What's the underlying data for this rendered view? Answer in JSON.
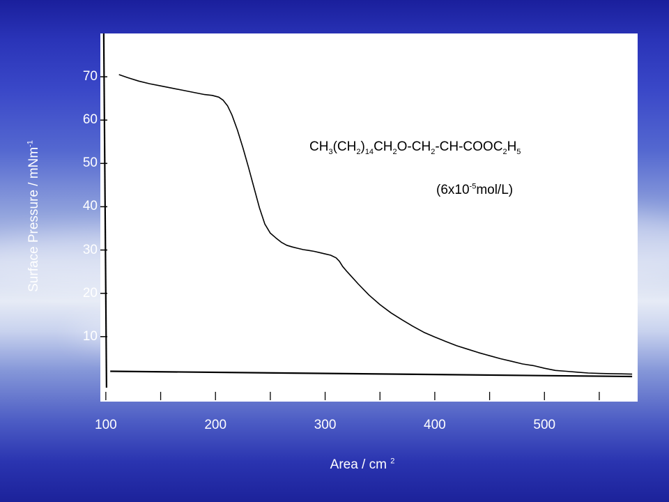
{
  "chart_data": {
    "type": "line",
    "xlabel": {
      "text": "Area / cm",
      "sup": "2"
    },
    "ylabel": {
      "text": "Surface Pressure / mNm",
      "sup": "-1"
    },
    "xlim": [
      95,
      585
    ],
    "ylim": [
      -5,
      80
    ],
    "x_ticks": [
      100,
      200,
      300,
      400,
      500
    ],
    "y_ticks": [
      10,
      20,
      30,
      40,
      50,
      60,
      70
    ],
    "x_minor_ticks": [
      150,
      250,
      350,
      450,
      550
    ],
    "grid": false,
    "legend": "none",
    "annotations": {
      "formula": [
        {
          "t": "CH"
        },
        {
          "sub": "3"
        },
        {
          "t": "(CH"
        },
        {
          "sub": "2"
        },
        {
          "t": ")"
        },
        {
          "sub": "14"
        },
        {
          "t": "CH"
        },
        {
          "sub": "2"
        },
        {
          "t": "O-CH"
        },
        {
          "sub": "2"
        },
        {
          "t": "-CH-COOC"
        },
        {
          "sub": "2"
        },
        {
          "t": "H"
        },
        {
          "sub": "5"
        }
      ],
      "concentration": [
        {
          "t": "(6x10"
        },
        {
          "sup": "-5"
        },
        {
          "t": "mol/L)"
        }
      ]
    },
    "series": [
      {
        "color": "#000000",
        "x": [
          112,
          120,
          130,
          140,
          150,
          160,
          170,
          180,
          190,
          197,
          203,
          207,
          211,
          215,
          220,
          225,
          230,
          235,
          240,
          245,
          250,
          255,
          260,
          265,
          270,
          275,
          280,
          285,
          290,
          295,
          300,
          305,
          310,
          313,
          316,
          320,
          330,
          340,
          350,
          360,
          370,
          380,
          390,
          400,
          410,
          420,
          430,
          440,
          450,
          460,
          470,
          480,
          490,
          500,
          510,
          520,
          530,
          540,
          550,
          560,
          570,
          580
        ],
        "y": [
          70.5,
          69.8,
          69.0,
          68.4,
          67.9,
          67.4,
          66.9,
          66.4,
          65.9,
          65.7,
          65.3,
          64.6,
          63.3,
          61.2,
          57.7,
          53.6,
          49.2,
          44.5,
          39.8,
          36.0,
          33.9,
          32.8,
          31.8,
          31.1,
          30.7,
          30.4,
          30.1,
          29.9,
          29.7,
          29.4,
          29.1,
          28.8,
          28.2,
          27.4,
          26.2,
          25.0,
          22.2,
          19.6,
          17.4,
          15.5,
          13.9,
          12.4,
          11.0,
          9.9,
          8.9,
          7.9,
          7.1,
          6.3,
          5.6,
          4.9,
          4.3,
          3.7,
          3.3,
          2.7,
          2.2,
          2.0,
          1.8,
          1.6,
          1.5,
          1.45,
          1.4,
          1.35
        ]
      },
      {
        "color": "#000000",
        "x": [
          104,
          580
        ],
        "y": [
          2.0,
          0.8
        ]
      }
    ]
  }
}
